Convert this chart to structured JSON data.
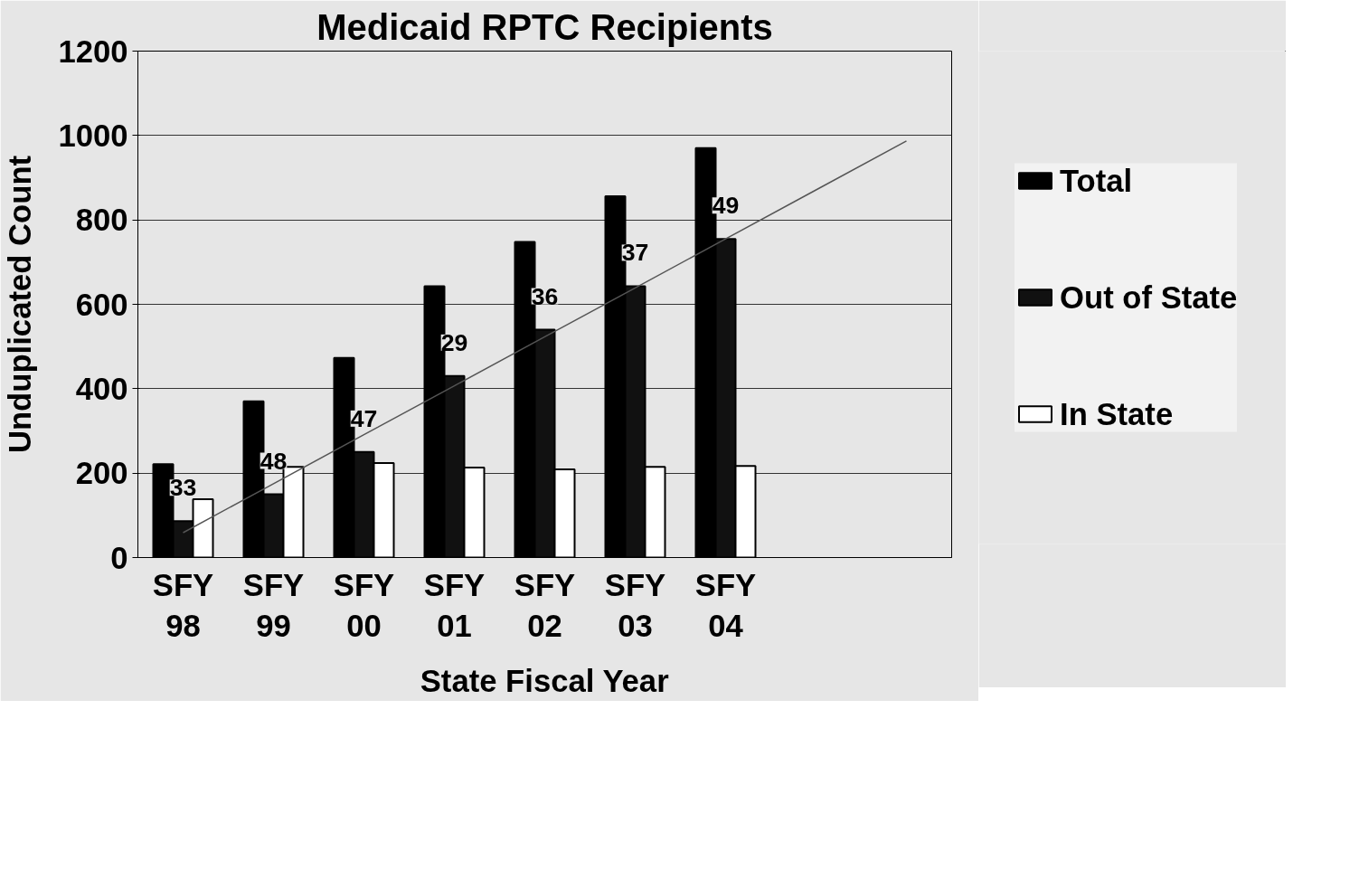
{
  "chart_data": {
    "type": "bar",
    "title": "Medicaid RPTC Recipients",
    "xlabel": "State Fiscal Year",
    "ylabel": "Unduplicated Count",
    "categories": [
      "SFY 98",
      "SFY 99",
      "SFY 00",
      "SFY 01",
      "SFY 02",
      "SFY 03",
      "SFY 04",
      null,
      null
    ],
    "series": [
      {
        "name": "Total",
        "color": "#000000",
        "values": [
          221,
          370,
          473,
          643,
          748,
          856,
          970,
          null,
          null
        ]
      },
      {
        "name": "Out of State",
        "color": "#111111",
        "values": [
          86,
          150,
          250,
          430,
          540,
          643,
          755,
          null,
          null
        ]
      },
      {
        "name": "In State",
        "color": "#ffffff",
        "values": [
          138,
          215,
          224,
          213,
          209,
          215,
          217,
          null,
          null
        ]
      },
      {
        "type": "line",
        "color": "#555555",
        "values": [
          59,
          175,
          291,
          407,
          523,
          639,
          755,
          871,
          987
        ]
      }
    ],
    "annotations": [
      "33",
      "48",
      "47",
      "29",
      "36",
      "37",
      "49"
    ],
    "ylim": [
      0,
      1200
    ],
    "yticks": [
      0,
      200,
      400,
      600,
      800,
      1000,
      1200
    ],
    "grid": "y",
    "legend": "right"
  }
}
